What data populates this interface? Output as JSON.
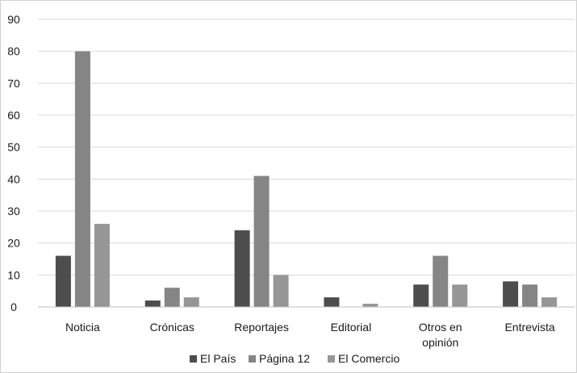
{
  "chart_data": {
    "type": "bar",
    "title": "",
    "xlabel": "",
    "ylabel": "",
    "categories": [
      [
        "Noticia"
      ],
      [
        "Crónicas"
      ],
      [
        "Reportajes"
      ],
      [
        "Editorial"
      ],
      [
        "Otros en",
        "opinión"
      ],
      [
        "Entrevista"
      ]
    ],
    "series": [
      {
        "name": "El País",
        "color": "#4d4d4d",
        "values": [
          16,
          2,
          24,
          3,
          7,
          8
        ]
      },
      {
        "name": "Página 12",
        "color": "#858585",
        "values": [
          80,
          6,
          41,
          0,
          16,
          7
        ]
      },
      {
        "name": "El Comercio",
        "color": "#969696",
        "values": [
          26,
          3,
          10,
          1,
          7,
          3
        ]
      }
    ],
    "ylim": [
      0,
      90
    ],
    "yticks": [
      0,
      10,
      20,
      30,
      40,
      50,
      60,
      70,
      80,
      90
    ],
    "grid": true,
    "legend_position": "bottom"
  }
}
